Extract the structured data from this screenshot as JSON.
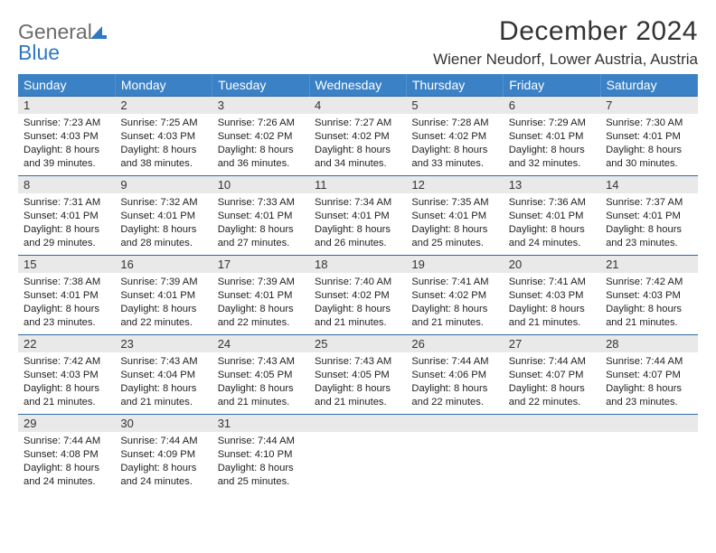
{
  "brand": {
    "word1": "General",
    "word2": "Blue"
  },
  "title": "December 2024",
  "subtitle": "Wiener Neudorf, Lower Austria, Austria",
  "colors": {
    "header_bg": "#3a81c6",
    "header_text": "#ffffff",
    "row_divider": "#2f6aa5",
    "daynum_bg": "#e9e9e9",
    "text": "#222222",
    "brand_gray": "#6b6b6b",
    "brand_blue": "#2f78c4"
  },
  "weekdays": [
    "Sunday",
    "Monday",
    "Tuesday",
    "Wednesday",
    "Thursday",
    "Friday",
    "Saturday"
  ],
  "weeks": [
    [
      {
        "n": "1",
        "sunrise": "7:23 AM",
        "sunset": "4:03 PM",
        "dl": "8 hours and 39 minutes."
      },
      {
        "n": "2",
        "sunrise": "7:25 AM",
        "sunset": "4:03 PM",
        "dl": "8 hours and 38 minutes."
      },
      {
        "n": "3",
        "sunrise": "7:26 AM",
        "sunset": "4:02 PM",
        "dl": "8 hours and 36 minutes."
      },
      {
        "n": "4",
        "sunrise": "7:27 AM",
        "sunset": "4:02 PM",
        "dl": "8 hours and 34 minutes."
      },
      {
        "n": "5",
        "sunrise": "7:28 AM",
        "sunset": "4:02 PM",
        "dl": "8 hours and 33 minutes."
      },
      {
        "n": "6",
        "sunrise": "7:29 AM",
        "sunset": "4:01 PM",
        "dl": "8 hours and 32 minutes."
      },
      {
        "n": "7",
        "sunrise": "7:30 AM",
        "sunset": "4:01 PM",
        "dl": "8 hours and 30 minutes."
      }
    ],
    [
      {
        "n": "8",
        "sunrise": "7:31 AM",
        "sunset": "4:01 PM",
        "dl": "8 hours and 29 minutes."
      },
      {
        "n": "9",
        "sunrise": "7:32 AM",
        "sunset": "4:01 PM",
        "dl": "8 hours and 28 minutes."
      },
      {
        "n": "10",
        "sunrise": "7:33 AM",
        "sunset": "4:01 PM",
        "dl": "8 hours and 27 minutes."
      },
      {
        "n": "11",
        "sunrise": "7:34 AM",
        "sunset": "4:01 PM",
        "dl": "8 hours and 26 minutes."
      },
      {
        "n": "12",
        "sunrise": "7:35 AM",
        "sunset": "4:01 PM",
        "dl": "8 hours and 25 minutes."
      },
      {
        "n": "13",
        "sunrise": "7:36 AM",
        "sunset": "4:01 PM",
        "dl": "8 hours and 24 minutes."
      },
      {
        "n": "14",
        "sunrise": "7:37 AM",
        "sunset": "4:01 PM",
        "dl": "8 hours and 23 minutes."
      }
    ],
    [
      {
        "n": "15",
        "sunrise": "7:38 AM",
        "sunset": "4:01 PM",
        "dl": "8 hours and 23 minutes."
      },
      {
        "n": "16",
        "sunrise": "7:39 AM",
        "sunset": "4:01 PM",
        "dl": "8 hours and 22 minutes."
      },
      {
        "n": "17",
        "sunrise": "7:39 AM",
        "sunset": "4:01 PM",
        "dl": "8 hours and 22 minutes."
      },
      {
        "n": "18",
        "sunrise": "7:40 AM",
        "sunset": "4:02 PM",
        "dl": "8 hours and 21 minutes."
      },
      {
        "n": "19",
        "sunrise": "7:41 AM",
        "sunset": "4:02 PM",
        "dl": "8 hours and 21 minutes."
      },
      {
        "n": "20",
        "sunrise": "7:41 AM",
        "sunset": "4:03 PM",
        "dl": "8 hours and 21 minutes."
      },
      {
        "n": "21",
        "sunrise": "7:42 AM",
        "sunset": "4:03 PM",
        "dl": "8 hours and 21 minutes."
      }
    ],
    [
      {
        "n": "22",
        "sunrise": "7:42 AM",
        "sunset": "4:03 PM",
        "dl": "8 hours and 21 minutes."
      },
      {
        "n": "23",
        "sunrise": "7:43 AM",
        "sunset": "4:04 PM",
        "dl": "8 hours and 21 minutes."
      },
      {
        "n": "24",
        "sunrise": "7:43 AM",
        "sunset": "4:05 PM",
        "dl": "8 hours and 21 minutes."
      },
      {
        "n": "25",
        "sunrise": "7:43 AM",
        "sunset": "4:05 PM",
        "dl": "8 hours and 21 minutes."
      },
      {
        "n": "26",
        "sunrise": "7:44 AM",
        "sunset": "4:06 PM",
        "dl": "8 hours and 22 minutes."
      },
      {
        "n": "27",
        "sunrise": "7:44 AM",
        "sunset": "4:07 PM",
        "dl": "8 hours and 22 minutes."
      },
      {
        "n": "28",
        "sunrise": "7:44 AM",
        "sunset": "4:07 PM",
        "dl": "8 hours and 23 minutes."
      }
    ],
    [
      {
        "n": "29",
        "sunrise": "7:44 AM",
        "sunset": "4:08 PM",
        "dl": "8 hours and 24 minutes."
      },
      {
        "n": "30",
        "sunrise": "7:44 AM",
        "sunset": "4:09 PM",
        "dl": "8 hours and 24 minutes."
      },
      {
        "n": "31",
        "sunrise": "7:44 AM",
        "sunset": "4:10 PM",
        "dl": "8 hours and 25 minutes."
      },
      null,
      null,
      null,
      null
    ]
  ],
  "labels": {
    "sunrise": "Sunrise:",
    "sunset": "Sunset:",
    "daylight": "Daylight:"
  }
}
